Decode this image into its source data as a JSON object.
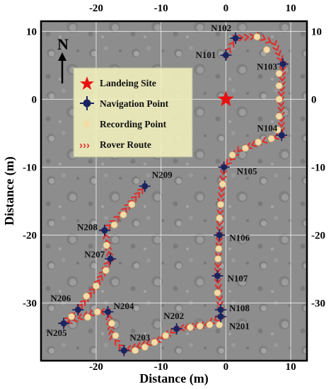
{
  "map": {
    "xlabel": "Distance (m)",
    "ylabel": "Distance (m)",
    "x_ticks": [
      -20,
      -10,
      0,
      10
    ],
    "y_ticks": [
      10,
      0,
      -10,
      -20,
      -30
    ],
    "xlim": [
      -28.5,
      12.5
    ],
    "ylim": [
      -38.5,
      11.5
    ],
    "north_label": "N",
    "legend": {
      "landing": "Landeing Site",
      "navigation": "Navigation Point",
      "recording": "Recording Point",
      "route": "Rover Route"
    },
    "colors": {
      "background": "#8c8c8c",
      "route": "#e0302c",
      "nav_point": "#1a2460",
      "recording_point": "#f3dca8",
      "landing_star": "#e81010",
      "legend_bg": "#efeebc"
    },
    "landing_site": {
      "x": 0,
      "y": 0
    },
    "navigation_points": [
      {
        "name": "N101",
        "x": 0,
        "y": 6.5
      },
      {
        "name": "N102",
        "x": 1.5,
        "y": 9
      },
      {
        "name": "N103",
        "x": 8.8,
        "y": 5.2
      },
      {
        "name": "N104",
        "x": 8.6,
        "y": -5.3
      },
      {
        "name": "N105",
        "x": -0.3,
        "y": -10
      },
      {
        "name": "N106",
        "x": -1,
        "y": -20
      },
      {
        "name": "N107",
        "x": -1.3,
        "y": -26
      },
      {
        "name": "N108",
        "x": -0.8,
        "y": -31
      },
      {
        "name": "N201",
        "x": -0.8,
        "y": -32
      },
      {
        "name": "N202",
        "x": -7.6,
        "y": -33.8
      },
      {
        "name": "N203",
        "x": -15.7,
        "y": -37
      },
      {
        "name": "N204",
        "x": -18.2,
        "y": -31.3
      },
      {
        "name": "N205",
        "x": -25,
        "y": -33
      },
      {
        "name": "N206",
        "x": -22.8,
        "y": -31
      },
      {
        "name": "N207",
        "x": -17.8,
        "y": -23.5
      },
      {
        "name": "N208",
        "x": -18.7,
        "y": -19.3
      },
      {
        "name": "N209",
        "x": -12.5,
        "y": -12.8
      }
    ],
    "recording_points": [
      [
        4.8,
        9.2
      ],
      [
        6.3,
        7.3
      ],
      [
        8.2,
        3.8
      ],
      [
        8.2,
        2
      ],
      [
        8.2,
        0
      ],
      [
        8.2,
        -2.5
      ],
      [
        8,
        -4.5
      ],
      [
        7,
        -5.8
      ],
      [
        5,
        -6.3
      ],
      [
        3,
        -7.2
      ],
      [
        1,
        -8.2
      ],
      [
        -0.5,
        -12.5
      ],
      [
        -0.8,
        -15.5
      ],
      [
        -1,
        -17.5
      ],
      [
        -1.1,
        -22
      ],
      [
        -1.2,
        -23.5
      ],
      [
        -1.3,
        -28.5
      ],
      [
        -1,
        -33.2
      ],
      [
        -2.5,
        -33.2
      ],
      [
        -4,
        -33.4
      ],
      [
        -5.5,
        -33.6
      ],
      [
        -9.3,
        -34.8
      ],
      [
        -11,
        -35.8
      ],
      [
        -12.5,
        -36.5
      ],
      [
        -14,
        -37
      ],
      [
        -17,
        -34.8
      ],
      [
        -17.6,
        -33
      ],
      [
        -19.8,
        -31.3
      ],
      [
        -21.3,
        -32.1
      ],
      [
        -23.8,
        -32
      ],
      [
        -21.5,
        -29
      ],
      [
        -20,
        -27.5
      ],
      [
        -18.5,
        -25.2
      ],
      [
        -18.4,
        -21.5
      ],
      [
        -17.2,
        -18.5
      ],
      [
        -15.8,
        -17
      ],
      [
        -14.5,
        -15.5
      ]
    ],
    "routes": [
      [
        [
          0,
          6.5
        ],
        [
          1.5,
          9
        ],
        [
          5,
          9.3
        ],
        [
          7.5,
          8.2
        ],
        [
          8.8,
          5.2
        ],
        [
          8.5,
          0
        ],
        [
          8.6,
          -5.3
        ],
        [
          5,
          -6.4
        ],
        [
          2,
          -7.5
        ],
        [
          -0.3,
          -10
        ],
        [
          -0.8,
          -15
        ],
        [
          -1,
          -20
        ],
        [
          -1.3,
          -26
        ],
        [
          -0.8,
          -31
        ],
        [
          -0.8,
          -32
        ]
      ],
      [
        [
          -0.8,
          -32
        ],
        [
          -3,
          -33.2
        ],
        [
          -7.6,
          -33.8
        ],
        [
          -10.5,
          -35.5
        ],
        [
          -15.7,
          -37
        ],
        [
          -17.5,
          -35
        ],
        [
          -18.2,
          -31.3
        ],
        [
          -20,
          -31.3
        ],
        [
          -25,
          -33
        ],
        [
          -22.8,
          -31
        ],
        [
          -20,
          -27.5
        ],
        [
          -17.8,
          -23.5
        ],
        [
          -18.7,
          -19.3
        ],
        [
          -16,
          -16.8
        ],
        [
          -12.5,
          -12.8
        ]
      ]
    ]
  }
}
